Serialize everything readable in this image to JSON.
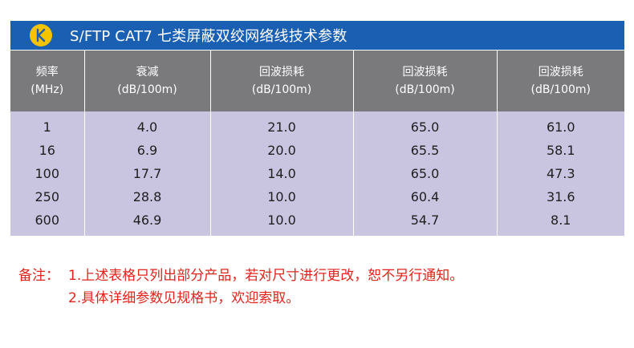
{
  "header": {
    "title": "S/FTP CAT7  七类屏蔽双绞网络线技术参数",
    "logo_icon": "k-logo-icon",
    "bar_color": "#1a5fb1",
    "logo_color": "#f4c400"
  },
  "table": {
    "columns": [
      {
        "line1": "频率",
        "line2": "(MHz)"
      },
      {
        "line1": "衰减",
        "line2": "(dB/100m)"
      },
      {
        "line1": "回波损耗",
        "line2": "(dB/100m)"
      },
      {
        "line1": "回波损耗",
        "line2": "(dB/100m)"
      },
      {
        "line1": "回波损耗",
        "line2": "(dB/100m)"
      }
    ],
    "rows": [
      [
        "1",
        "4.0",
        "21.0",
        "65.0",
        "61.0"
      ],
      [
        "16",
        "6.9",
        "20.0",
        "65.5",
        "58.1"
      ],
      [
        "100",
        "17.7",
        "14.0",
        "65.0",
        "47.3"
      ],
      [
        "250",
        "28.8",
        "10.0",
        "60.4",
        "31.6"
      ],
      [
        "600",
        "46.9",
        "10.0",
        "54.7",
        "8.1"
      ]
    ],
    "header_color": "#7a7a7d",
    "body_color": "#c9c5e1"
  },
  "notes": {
    "label": "备注：",
    "items": [
      "1.上述表格只列出部分产品，若对尺寸进行更改，恕不另行通知。",
      "2.具体详细参数见规格书，欢迎索取。"
    ],
    "color": "#e2231a"
  }
}
